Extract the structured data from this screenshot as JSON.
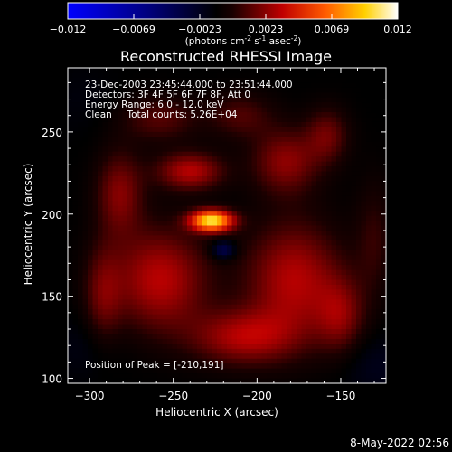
{
  "colorbar": {
    "ticks": [
      "-0.012",
      "-0.0069",
      "-0.0023",
      "0.0023",
      "0.0069",
      "0.012"
    ],
    "unit_parts": [
      "(photons cm",
      "-2",
      " s",
      "-1",
      " asec",
      "-2",
      ")"
    ]
  },
  "chart_data": {
    "type": "heatmap",
    "title": "Reconstructed RHESSI Image",
    "xlabel": "Heliocentric X (arcsec)",
    "ylabel": "Heliocentric Y (arcsec)",
    "xlim": [
      -313,
      -123
    ],
    "ylim": [
      97,
      289
    ],
    "xticks": [
      -300,
      -250,
      -200,
      -150
    ],
    "yticks": [
      100,
      150,
      200,
      250
    ],
    "zlim": [
      -0.012,
      0.012
    ],
    "colormap": "rhessi-3 (blue-black-red-yellow-white)",
    "annotations": [
      "23-Dec-2003 23:45:44.000 to 23:51:44.000",
      "Detectors: 3F 4F 5F 6F 7F 8F, Att 0",
      "Energy Range: 6.0 - 12.0 keV",
      "Clean     Total counts: 5.26E+04"
    ],
    "peak_label": "Position of Peak = [-210,191]",
    "peak": [
      -210,
      191
    ],
    "sources": [
      {
        "x": -227,
        "y": 196,
        "sx": 9,
        "sy": 4.5,
        "amp": 0.0115
      },
      {
        "x": -240,
        "y": 226,
        "sx": 14,
        "sy": 8,
        "amp": 0.0045
      },
      {
        "x": -258,
        "y": 160,
        "sx": 20,
        "sy": 22,
        "amp": 0.0046
      },
      {
        "x": -178,
        "y": 160,
        "sx": 20,
        "sy": 25,
        "amp": 0.0045
      },
      {
        "x": -208,
        "y": 125,
        "sx": 22,
        "sy": 12,
        "amp": 0.0042
      },
      {
        "x": -183,
        "y": 232,
        "sx": 14,
        "sy": 14,
        "amp": 0.0036
      },
      {
        "x": -282,
        "y": 213,
        "sx": 10,
        "sy": 18,
        "amp": 0.0034
      },
      {
        "x": -158,
        "y": 248,
        "sx": 9,
        "sy": 12,
        "amp": 0.0028
      },
      {
        "x": -292,
        "y": 150,
        "sx": 8,
        "sy": 22,
        "amp": 0.0026
      },
      {
        "x": -150,
        "y": 138,
        "sx": 10,
        "sy": 16,
        "amp": 0.003
      },
      {
        "x": -258,
        "y": 258,
        "sx": 16,
        "sy": 10,
        "amp": 0.0024
      },
      {
        "x": -210,
        "y": 260,
        "sx": 14,
        "sy": 10,
        "amp": 0.0022
      },
      {
        "x": -130,
        "y": 185,
        "sx": 8,
        "sy": 25,
        "amp": 0.0016
      },
      {
        "x": -300,
        "y": 120,
        "sx": 14,
        "sy": 14,
        "amp": -0.0008
      },
      {
        "x": -130,
        "y": 108,
        "sx": 14,
        "sy": 14,
        "amp": -0.001
      },
      {
        "x": -305,
        "y": 270,
        "sx": 14,
        "sy": 14,
        "amp": -0.0004
      },
      {
        "x": -220,
        "y": 178,
        "sx": 5,
        "sy": 4,
        "amp": -0.0036
      }
    ]
  },
  "footer": {
    "date": "8-May-2022 02:56"
  }
}
